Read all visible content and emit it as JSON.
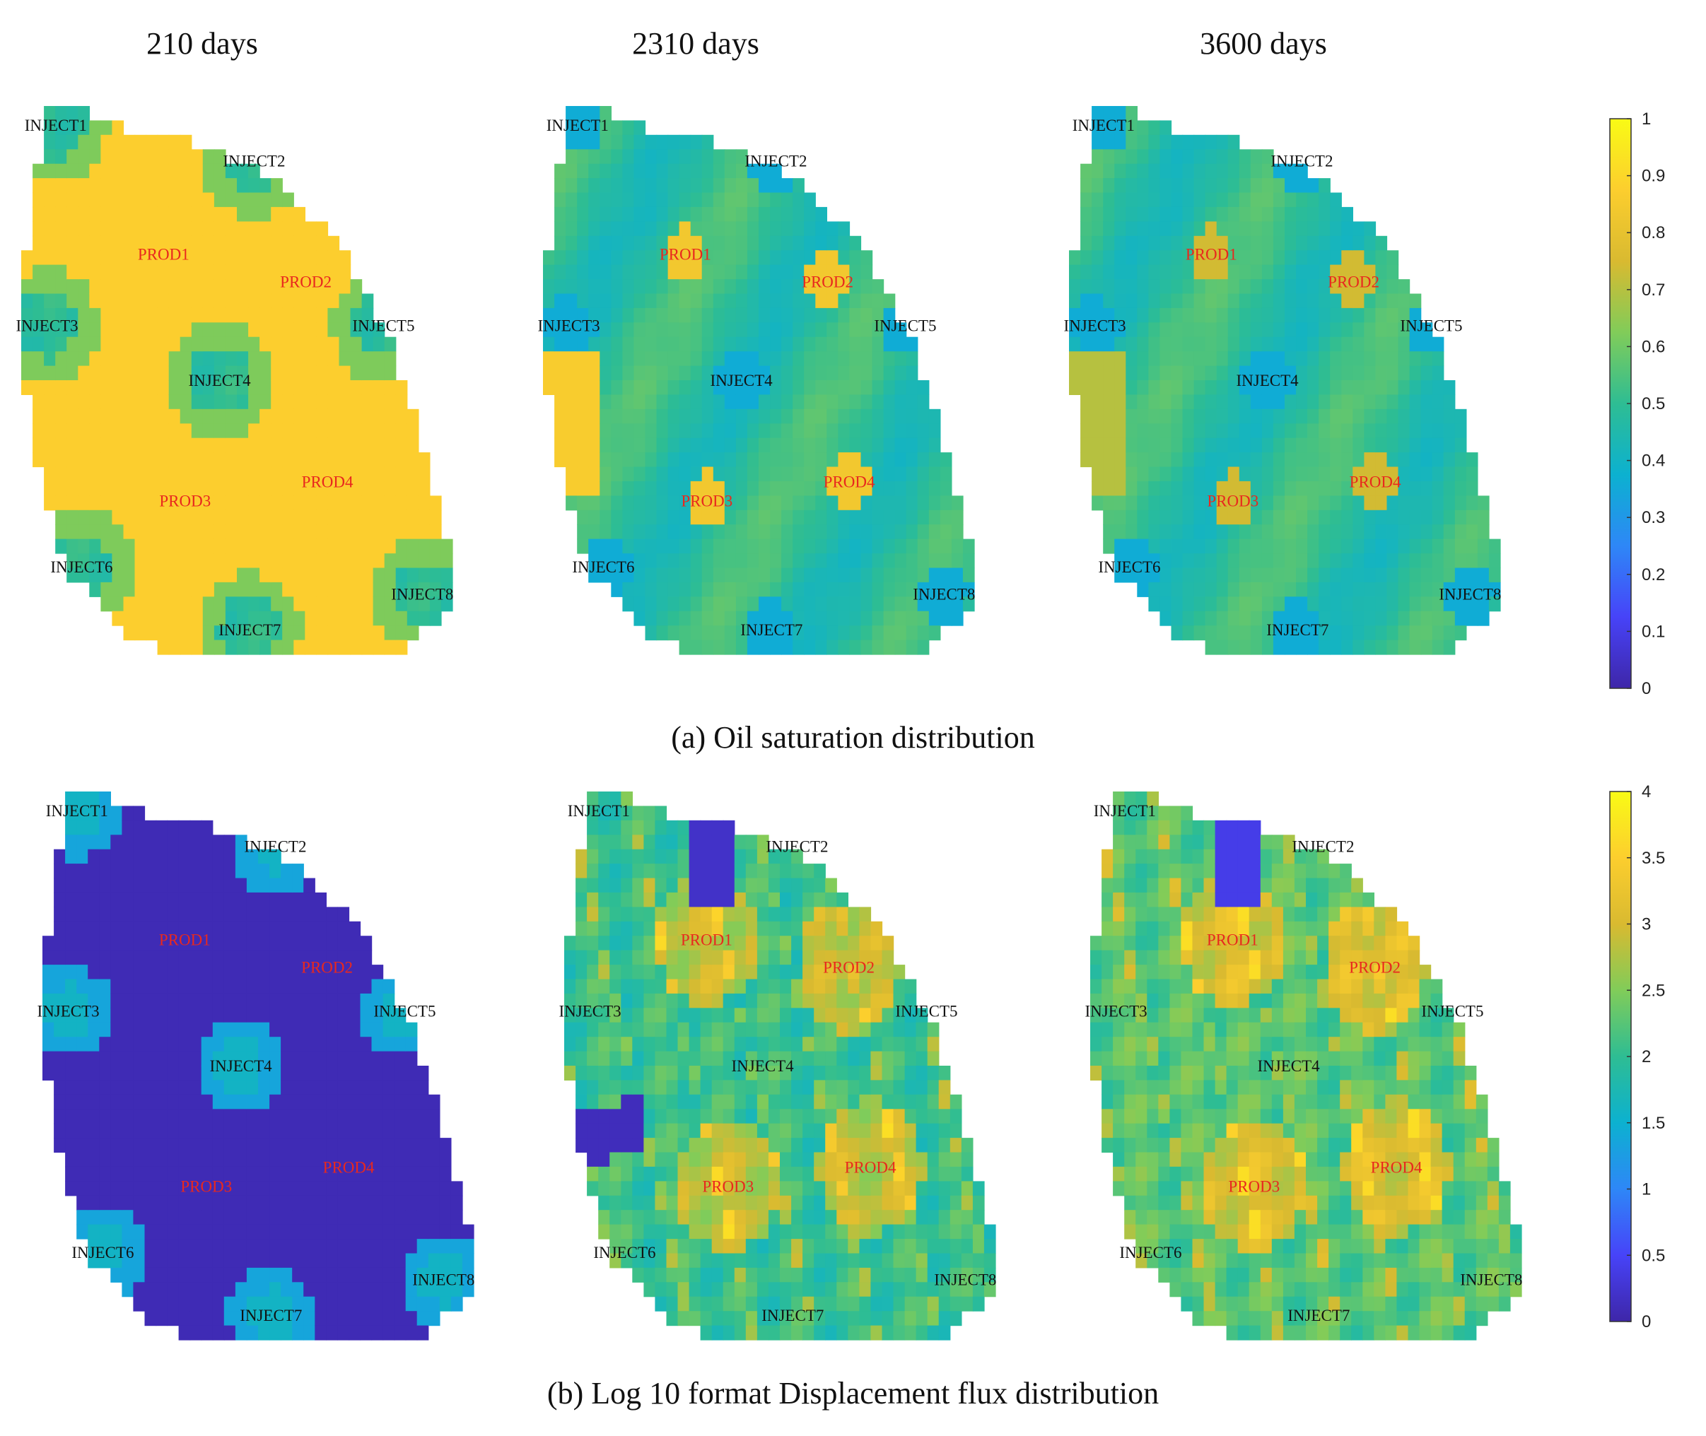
{
  "column_titles": [
    "210 days",
    "2310 days",
    "3600 days"
  ],
  "captions": {
    "a": "(a) Oil saturation distribution",
    "b": "(b) Log 10 format Displacement flux distribution"
  },
  "wells": [
    {
      "name": "INJECT1",
      "type": "injector",
      "u": 0.08,
      "v": 0.035
    },
    {
      "name": "INJECT2",
      "type": "injector",
      "u": 0.54,
      "v": 0.1
    },
    {
      "name": "PROD1",
      "type": "producer",
      "u": 0.33,
      "v": 0.27
    },
    {
      "name": "PROD2",
      "type": "producer",
      "u": 0.66,
      "v": 0.32
    },
    {
      "name": "INJECT3",
      "type": "injector",
      "u": 0.06,
      "v": 0.4
    },
    {
      "name": "INJECT5",
      "type": "injector",
      "u": 0.84,
      "v": 0.4
    },
    {
      "name": "INJECT4",
      "type": "injector",
      "u": 0.46,
      "v": 0.5
    },
    {
      "name": "PROD3",
      "type": "producer",
      "u": 0.38,
      "v": 0.72
    },
    {
      "name": "PROD4",
      "type": "producer",
      "u": 0.71,
      "v": 0.685
    },
    {
      "name": "INJECT6",
      "type": "injector",
      "u": 0.14,
      "v": 0.84
    },
    {
      "name": "INJECT8",
      "type": "injector",
      "u": 0.93,
      "v": 0.89
    },
    {
      "name": "INJECT7",
      "type": "injector",
      "u": 0.53,
      "v": 0.955
    }
  ],
  "panels": [
    {
      "row": "a",
      "time": "210 days",
      "field": "oil_saturation"
    },
    {
      "row": "a",
      "time": "2310 days",
      "field": "oil_saturation"
    },
    {
      "row": "a",
      "time": "3600 days",
      "field": "oil_saturation"
    },
    {
      "row": "b",
      "time": "210 days",
      "field": "log10_displacement_flux"
    },
    {
      "row": "b",
      "time": "2310 days",
      "field": "log10_displacement_flux"
    },
    {
      "row": "b",
      "time": "3600 days",
      "field": "log10_displacement_flux"
    }
  ],
  "colorbars": {
    "a": {
      "min": 0,
      "max": 1,
      "ticks": [
        "0",
        "0.1",
        "0.2",
        "0.3",
        "0.4",
        "0.5",
        "0.6",
        "0.7",
        "0.8",
        "0.9",
        "1"
      ]
    },
    "b": {
      "min": 0,
      "max": 4,
      "ticks": [
        "0",
        "0.5",
        "1",
        "1.5",
        "2",
        "2.5",
        "3",
        "3.5",
        "4"
      ]
    }
  },
  "colors": {
    "colormap": [
      "#3e26a8",
      "#4743f8",
      "#2e87f7",
      "#0cb1d0",
      "#2ebd93",
      "#81cc59",
      "#d9ba30",
      "#fcce2e",
      "#f9fb15"
    ],
    "injector_label": "#111111",
    "producer_label": "#e8281e"
  }
}
